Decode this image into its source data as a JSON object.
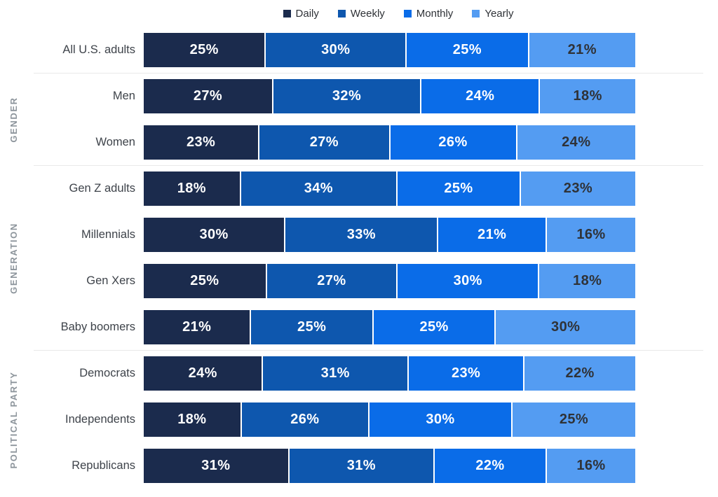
{
  "legend": {
    "items": [
      {
        "label": "Daily",
        "color": "#1B2B4D"
      },
      {
        "label": "Weekly",
        "color": "#0E57AE"
      },
      {
        "label": "Monthly",
        "color": "#0A6CE8"
      },
      {
        "label": "Yearly",
        "color": "#549CF2"
      }
    ]
  },
  "value_suffix": "%",
  "colors": {
    "background": "#FFFFFF",
    "separator": "#E9E9E9",
    "row_label": "#3E434A",
    "group_label": "#8D959C",
    "light_value_text": "#FFFFFF",
    "dark_value_text": "#2F3237"
  },
  "groups": [
    {
      "name": "",
      "rows": [
        {
          "label": "All U.S. adults",
          "values": [
            25,
            30,
            25,
            21
          ]
        }
      ]
    },
    {
      "name": "GENDER",
      "rows": [
        {
          "label": "Men",
          "values": [
            27,
            32,
            24,
            18
          ]
        },
        {
          "label": "Women",
          "values": [
            23,
            27,
            26,
            24
          ]
        }
      ]
    },
    {
      "name": "GENERATION",
      "rows": [
        {
          "label": "Gen Z adults",
          "values": [
            18,
            34,
            25,
            23
          ]
        },
        {
          "label": "Millennials",
          "values": [
            30,
            33,
            21,
            16
          ]
        },
        {
          "label": "Gen Xers",
          "values": [
            25,
            27,
            30,
            18
          ]
        },
        {
          "label": "Baby boomers",
          "values": [
            21,
            25,
            25,
            30
          ]
        }
      ]
    },
    {
      "name": "POLITICAL PARTY",
      "rows": [
        {
          "label": "Democrats",
          "values": [
            24,
            31,
            23,
            22
          ]
        },
        {
          "label": "Independents",
          "values": [
            18,
            26,
            30,
            25
          ]
        },
        {
          "label": "Republicans",
          "values": [
            31,
            31,
            22,
            16
          ]
        }
      ]
    }
  ],
  "chart_data": {
    "type": "bar",
    "subtype": "horizontal-stacked-100pct",
    "title": "",
    "unit": "percent",
    "xlim": [
      0,
      100
    ],
    "grid": false,
    "legend_position": "top",
    "categories": [
      "All U.S. adults",
      "Men",
      "Women",
      "Gen Z adults",
      "Millennials",
      "Gen Xers",
      "Baby boomers",
      "Democrats",
      "Independents",
      "Republicans"
    ],
    "series": [
      {
        "name": "Daily",
        "color": "#1B2B4D",
        "values": [
          25,
          27,
          23,
          18,
          30,
          25,
          21,
          24,
          18,
          31
        ]
      },
      {
        "name": "Weekly",
        "color": "#0E57AE",
        "values": [
          30,
          32,
          27,
          34,
          33,
          27,
          25,
          31,
          26,
          31
        ]
      },
      {
        "name": "Monthly",
        "color": "#0A6CE8",
        "values": [
          25,
          24,
          26,
          25,
          21,
          30,
          25,
          23,
          30,
          22
        ]
      },
      {
        "name": "Yearly",
        "color": "#549CF2",
        "values": [
          21,
          18,
          24,
          23,
          16,
          18,
          30,
          22,
          25,
          16
        ]
      }
    ],
    "row_groups": [
      {
        "name": "GENDER",
        "rows": [
          "Men",
          "Women"
        ]
      },
      {
        "name": "GENERATION",
        "rows": [
          "Gen Z adults",
          "Millennials",
          "Gen Xers",
          "Baby boomers"
        ]
      },
      {
        "name": "POLITICAL PARTY",
        "rows": [
          "Democrats",
          "Independents",
          "Republicans"
        ]
      }
    ],
    "data_labels_shown": true
  }
}
